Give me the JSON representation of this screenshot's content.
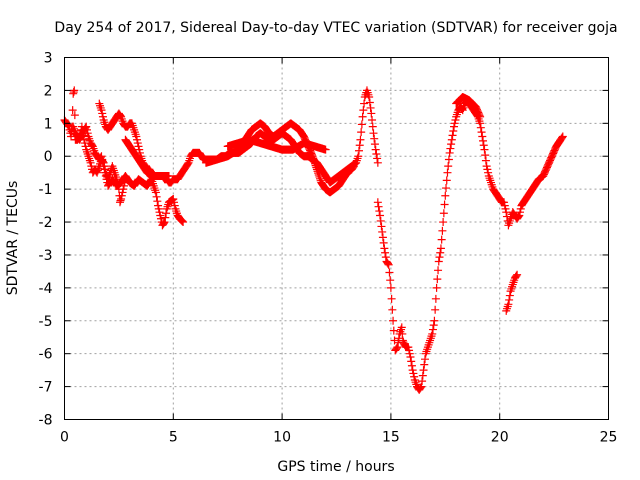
{
  "chart_data": {
    "type": "scatter",
    "title": "Day 254 of 2017, Sidereal Day-to-day VTEC variation (SDTVAR) for receiver goja",
    "xlabel": "GPS time / hours",
    "ylabel": "SDTVAR / TECUs",
    "xlim": [
      0,
      25
    ],
    "ylim": [
      -8,
      3
    ],
    "xticks": [
      "0",
      "5",
      "10",
      "15",
      "20",
      "25"
    ],
    "yticks": [
      "3",
      "2",
      "1",
      "0",
      "-1",
      "-2",
      "-3",
      "-4",
      "-5",
      "-6",
      "-7",
      "-8"
    ],
    "grid": true,
    "marker": "+",
    "color": "#ff0000",
    "series": [
      {
        "values": [
          [
            0.0,
            1.1
          ],
          [
            0.1,
            1.0
          ],
          [
            0.2,
            0.9
          ],
          [
            0.3,
            0.6
          ],
          [
            0.35,
            0.9
          ],
          [
            0.4,
            1.9
          ],
          [
            0.45,
            2.0
          ],
          [
            0.5,
            0.5
          ],
          [
            0.6,
            0.5
          ],
          [
            0.7,
            0.6
          ],
          [
            0.8,
            0.9
          ],
          [
            0.9,
            0.5
          ],
          [
            1.0,
            0.2
          ],
          [
            1.1,
            0.0
          ],
          [
            1.2,
            -0.2
          ],
          [
            1.3,
            -0.5
          ],
          [
            1.4,
            -0.4
          ],
          [
            1.5,
            -0.5
          ],
          [
            1.6,
            -0.3
          ],
          [
            1.7,
            -0.1
          ],
          [
            1.8,
            -0.2
          ],
          [
            1.9,
            -0.5
          ],
          [
            2.0,
            -0.7
          ],
          [
            2.1,
            -0.5
          ],
          [
            2.2,
            -0.3
          ],
          [
            2.3,
            -0.5
          ],
          [
            2.4,
            -0.7
          ],
          [
            2.5,
            -1.0
          ],
          [
            2.55,
            -1.4
          ],
          [
            2.6,
            -1.3
          ],
          [
            2.7,
            -1.0
          ],
          [
            2.8,
            -0.7
          ]
        ]
      },
      {
        "values": [
          [
            0.4,
            0.9
          ],
          [
            0.5,
            0.7
          ],
          [
            0.7,
            0.5
          ],
          [
            0.9,
            0.8
          ],
          [
            1.0,
            0.9
          ],
          [
            1.1,
            0.6
          ],
          [
            1.2,
            0.4
          ],
          [
            1.3,
            0.3
          ],
          [
            1.4,
            0.1
          ],
          [
            1.5,
            0.0
          ],
          [
            1.6,
            -0.1
          ],
          [
            1.7,
            0.0
          ],
          [
            1.8,
            -0.3
          ],
          [
            1.9,
            -0.6
          ],
          [
            2.0,
            -0.9
          ],
          [
            2.1,
            -0.8
          ],
          [
            2.2,
            -0.7
          ],
          [
            2.3,
            -0.8
          ],
          [
            2.4,
            -0.9
          ],
          [
            2.6,
            -0.8
          ],
          [
            2.8,
            -0.6
          ],
          [
            3.0,
            -0.8
          ],
          [
            3.2,
            -0.9
          ],
          [
            3.4,
            -0.7
          ],
          [
            3.6,
            -0.8
          ],
          [
            3.8,
            -0.9
          ],
          [
            4.0,
            -0.7
          ],
          [
            4.1,
            -0.9
          ],
          [
            4.2,
            -1.1
          ],
          [
            4.3,
            -1.5
          ],
          [
            4.4,
            -1.8
          ],
          [
            4.5,
            -2.1
          ],
          [
            4.6,
            -2.0
          ],
          [
            4.7,
            -1.6
          ],
          [
            4.8,
            -1.4
          ],
          [
            5.0,
            -1.3
          ],
          [
            5.1,
            -1.6
          ],
          [
            5.2,
            -1.8
          ],
          [
            5.3,
            -1.9
          ],
          [
            5.45,
            -2.0
          ]
        ]
      },
      {
        "values": [
          [
            1.6,
            1.6
          ],
          [
            1.7,
            1.4
          ],
          [
            1.8,
            1.1
          ],
          [
            1.9,
            0.9
          ],
          [
            2.0,
            0.8
          ],
          [
            2.1,
            0.9
          ],
          [
            2.2,
            1.0
          ],
          [
            2.3,
            1.1
          ],
          [
            2.4,
            1.2
          ],
          [
            2.5,
            1.3
          ],
          [
            2.6,
            1.2
          ],
          [
            2.7,
            1.0
          ],
          [
            2.8,
            0.9
          ],
          [
            2.9,
            0.9
          ],
          [
            3.0,
            1.0
          ],
          [
            3.1,
            1.0
          ],
          [
            3.2,
            0.8
          ],
          [
            3.3,
            0.6
          ],
          [
            3.4,
            0.3
          ],
          [
            3.5,
            0.0
          ],
          [
            3.6,
            -0.2
          ],
          [
            3.7,
            -0.3
          ],
          [
            3.8,
            -0.4
          ],
          [
            3.9,
            -0.4
          ],
          [
            4.0,
            -0.5
          ],
          [
            4.1,
            -0.6
          ],
          [
            4.2,
            -0.6
          ],
          [
            4.3,
            -0.6
          ],
          [
            4.4,
            -0.6
          ],
          [
            4.5,
            -0.6
          ],
          [
            4.6,
            -0.7
          ],
          [
            4.7,
            -0.7
          ],
          [
            4.8,
            -0.8
          ],
          [
            4.9,
            -0.8
          ],
          [
            5.0,
            -0.7
          ],
          [
            5.1,
            -0.7
          ],
          [
            5.2,
            -0.7
          ],
          [
            5.3,
            -0.6
          ],
          [
            5.4,
            -0.5
          ],
          [
            5.5,
            -0.4
          ],
          [
            5.6,
            -0.3
          ],
          [
            5.7,
            -0.2
          ],
          [
            5.8,
            0.0
          ],
          [
            5.9,
            0.1
          ],
          [
            6.0,
            0.1
          ],
          [
            6.2,
            0.1
          ],
          [
            6.4,
            -0.1
          ],
          [
            6.6,
            -0.1
          ],
          [
            6.8,
            -0.1
          ],
          [
            7.0,
            -0.1
          ],
          [
            7.2,
            0.0
          ],
          [
            7.4,
            0.0
          ],
          [
            7.6,
            0.1
          ],
          [
            7.8,
            0.1
          ],
          [
            8.0,
            0.1
          ],
          [
            8.2,
            0.2
          ],
          [
            8.4,
            0.3
          ],
          [
            8.6,
            0.4
          ],
          [
            8.8,
            0.6
          ],
          [
            9.0,
            0.7
          ],
          [
            9.2,
            0.6
          ],
          [
            9.4,
            0.5
          ],
          [
            9.6,
            0.5
          ],
          [
            9.8,
            0.6
          ],
          [
            10.0,
            0.7
          ],
          [
            10.2,
            0.6
          ],
          [
            10.4,
            0.5
          ],
          [
            10.6,
            0.3
          ],
          [
            10.8,
            0.1
          ],
          [
            11.0,
            0.0
          ],
          [
            11.2,
            0.0
          ],
          [
            11.4,
            -0.1
          ],
          [
            11.6,
            -0.2
          ],
          [
            11.8,
            -0.4
          ],
          [
            12.0,
            -0.6
          ],
          [
            12.2,
            -0.8
          ],
          [
            12.4,
            -0.7
          ],
          [
            12.6,
            -0.6
          ],
          [
            12.8,
            -0.5
          ],
          [
            13.0,
            -0.4
          ],
          [
            13.2,
            -0.3
          ],
          [
            13.4,
            -0.2
          ],
          [
            13.5,
            0.0
          ],
          [
            13.6,
            0.5
          ],
          [
            13.7,
            1.2
          ],
          [
            13.8,
            1.8
          ],
          [
            13.9,
            2.0
          ],
          [
            14.0,
            1.8
          ],
          [
            14.1,
            1.3
          ],
          [
            14.2,
            0.7
          ],
          [
            14.3,
            0.2
          ],
          [
            14.4,
            -0.2
          ]
        ]
      },
      {
        "values": [
          [
            2.8,
            0.5
          ],
          [
            3.0,
            0.3
          ],
          [
            3.2,
            0.1
          ],
          [
            3.4,
            -0.1
          ],
          [
            3.6,
            -0.3
          ],
          [
            3.8,
            -0.5
          ],
          [
            4.0,
            -0.6
          ],
          [
            4.2,
            -0.6
          ],
          [
            4.4,
            -0.6
          ],
          [
            4.6,
            -0.6
          ],
          [
            4.8,
            -0.6
          ]
        ]
      },
      {
        "values": [
          [
            6.5,
            -0.2
          ],
          [
            7.0,
            -0.1
          ],
          [
            7.5,
            0.0
          ],
          [
            8.0,
            0.2
          ],
          [
            8.2,
            0.4
          ],
          [
            8.4,
            0.6
          ],
          [
            8.6,
            0.8
          ],
          [
            8.8,
            0.9
          ],
          [
            9.0,
            1.0
          ],
          [
            9.2,
            0.9
          ],
          [
            9.4,
            0.7
          ],
          [
            9.6,
            0.6
          ],
          [
            9.8,
            0.7
          ],
          [
            10.0,
            0.8
          ],
          [
            10.2,
            0.9
          ],
          [
            10.4,
            1.0
          ],
          [
            10.6,
            0.9
          ],
          [
            10.8,
            0.8
          ],
          [
            11.0,
            0.6
          ],
          [
            11.2,
            0.3
          ],
          [
            11.4,
            0.0
          ],
          [
            11.6,
            -0.4
          ],
          [
            11.8,
            -0.8
          ],
          [
            12.0,
            -1.0
          ],
          [
            12.2,
            -1.1
          ],
          [
            12.4,
            -1.0
          ],
          [
            12.6,
            -0.9
          ],
          [
            12.8,
            -0.7
          ],
          [
            13.0,
            -0.5
          ],
          [
            13.2,
            -0.4
          ],
          [
            13.3,
            -0.3
          ]
        ]
      },
      {
        "values": [
          [
            7.5,
            0.3
          ],
          [
            8.0,
            0.4
          ],
          [
            8.5,
            0.5
          ],
          [
            9.0,
            0.4
          ],
          [
            9.5,
            0.3
          ],
          [
            10.0,
            0.2
          ],
          [
            10.5,
            0.2
          ],
          [
            11.0,
            0.4
          ],
          [
            11.5,
            0.3
          ],
          [
            12.0,
            0.2
          ]
        ]
      },
      {
        "values": [
          [
            14.4,
            -1.4
          ],
          [
            14.5,
            -1.8
          ],
          [
            14.6,
            -2.3
          ],
          [
            14.7,
            -2.8
          ],
          [
            14.8,
            -3.2
          ],
          [
            14.9,
            -3.3
          ],
          [
            15.0,
            -4.0
          ],
          [
            15.1,
            -5.0
          ],
          [
            15.2,
            -5.9
          ],
          [
            15.3,
            -5.8
          ],
          [
            15.4,
            -5.4
          ],
          [
            15.5,
            -5.2
          ],
          [
            15.55,
            -5.6
          ],
          [
            15.6,
            -5.7
          ],
          [
            15.7,
            -5.8
          ],
          [
            15.8,
            -5.8
          ],
          [
            15.9,
            -6.1
          ],
          [
            16.0,
            -6.5
          ],
          [
            16.1,
            -6.8
          ],
          [
            16.2,
            -7.0
          ],
          [
            16.3,
            -7.1
          ],
          [
            16.4,
            -7.0
          ],
          [
            16.5,
            -6.5
          ],
          [
            16.6,
            -6.0
          ],
          [
            16.7,
            -5.8
          ],
          [
            16.8,
            -5.6
          ],
          [
            16.9,
            -5.4
          ],
          [
            17.0,
            -5.0
          ],
          [
            17.1,
            -4.0
          ],
          [
            17.2,
            -3.2
          ],
          [
            17.3,
            -2.8
          ],
          [
            17.4,
            -2.0
          ],
          [
            17.5,
            -1.2
          ],
          [
            17.6,
            -0.5
          ],
          [
            17.7,
            0.1
          ],
          [
            17.8,
            0.5
          ],
          [
            17.9,
            0.9
          ],
          [
            18.0,
            1.2
          ],
          [
            18.1,
            1.4
          ],
          [
            18.2,
            1.5
          ],
          [
            18.3,
            1.4
          ],
          [
            18.4,
            1.6
          ],
          [
            18.5,
            1.7
          ],
          [
            18.6,
            1.6
          ],
          [
            18.7,
            1.5
          ],
          [
            18.8,
            1.4
          ],
          [
            18.9,
            1.3
          ],
          [
            19.0,
            1.2
          ],
          [
            19.1,
            1.0
          ],
          [
            19.2,
            0.6
          ],
          [
            19.3,
            0.2
          ],
          [
            19.4,
            -0.3
          ],
          [
            19.5,
            -0.6
          ],
          [
            19.6,
            -0.8
          ],
          [
            19.7,
            -1.0
          ],
          [
            19.8,
            -1.1
          ],
          [
            19.9,
            -1.2
          ],
          [
            20.0,
            -1.3
          ],
          [
            20.1,
            -1.4
          ],
          [
            20.2,
            -1.4
          ],
          [
            20.3,
            -1.7
          ],
          [
            20.4,
            -2.1
          ],
          [
            20.5,
            -1.9
          ],
          [
            20.6,
            -1.7
          ],
          [
            20.7,
            -1.8
          ],
          [
            20.8,
            -1.9
          ],
          [
            20.9,
            -1.8
          ],
          [
            21.0,
            -1.5
          ],
          [
            21.2,
            -1.3
          ],
          [
            21.4,
            -1.1
          ],
          [
            21.6,
            -0.9
          ],
          [
            21.8,
            -0.7
          ],
          [
            22.0,
            -0.6
          ],
          [
            22.2,
            -0.3
          ],
          [
            22.4,
            0.0
          ],
          [
            22.6,
            0.3
          ],
          [
            22.8,
            0.5
          ],
          [
            22.9,
            0.6
          ]
        ]
      },
      {
        "values": [
          [
            18.0,
            1.6
          ],
          [
            18.3,
            1.8
          ],
          [
            18.6,
            1.7
          ],
          [
            18.9,
            1.5
          ],
          [
            19.1,
            1.2
          ]
        ]
      },
      {
        "values": [
          [
            20.3,
            -4.7
          ],
          [
            20.4,
            -4.5
          ],
          [
            20.5,
            -4.1
          ],
          [
            20.6,
            -3.9
          ],
          [
            20.7,
            -3.7
          ],
          [
            20.8,
            -3.6
          ]
        ]
      }
    ]
  }
}
